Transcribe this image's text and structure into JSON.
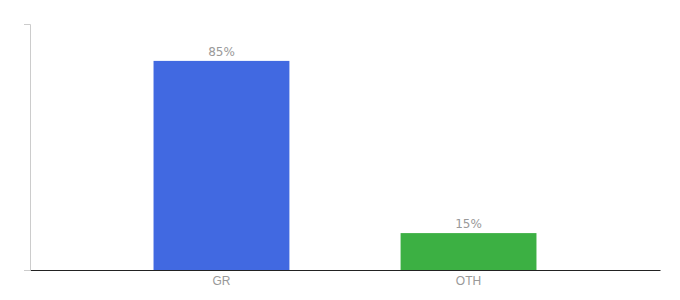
{
  "chart_data": {
    "type": "bar",
    "categories": [
      "GR",
      "OTH"
    ],
    "values": [
      85,
      15
    ],
    "value_labels": [
      "85%",
      "15%"
    ],
    "colors": [
      "#4169e1",
      "#3cb043"
    ],
    "ylim": [
      0,
      100
    ],
    "data_labels": true,
    "tick_labels": "x",
    "grid": false
  }
}
